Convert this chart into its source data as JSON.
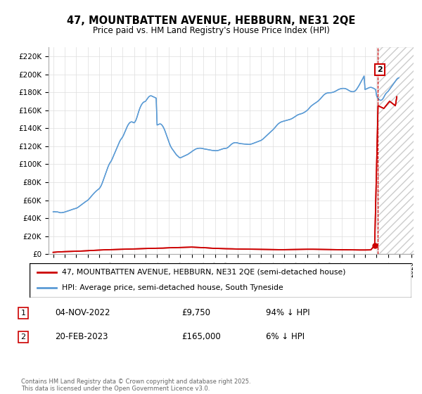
{
  "title": "47, MOUNTBATTEN AVENUE, HEBBURN, NE31 2QE",
  "subtitle": "Price paid vs. HM Land Registry's House Price Index (HPI)",
  "legend_label_red": "47, MOUNTBATTEN AVENUE, HEBBURN, NE31 2QE (semi-detached house)",
  "legend_label_blue": "HPI: Average price, semi-detached house, South Tyneside",
  "ylim": [
    0,
    230000
  ],
  "yticks": [
    0,
    20000,
    40000,
    60000,
    80000,
    100000,
    120000,
    140000,
    160000,
    180000,
    200000,
    220000
  ],
  "ytick_labels": [
    "£0",
    "£20K",
    "£40K",
    "£60K",
    "£80K",
    "£100K",
    "£120K",
    "£140K",
    "£160K",
    "£180K",
    "£200K",
    "£220K"
  ],
  "t1_year": 2022.833,
  "t1_price": 9750,
  "t2_year": 2023.125,
  "t2_price": 165000,
  "copyright": "Contains HM Land Registry data © Crown copyright and database right 2025.\nThis data is licensed under the Open Government Licence v3.0.",
  "red_color": "#cc0000",
  "blue_color": "#5b9bd5",
  "hpi_years": [
    1995.0,
    1995.083,
    1995.167,
    1995.25,
    1995.333,
    1995.417,
    1995.5,
    1995.583,
    1995.667,
    1995.75,
    1995.833,
    1995.917,
    1996.0,
    1996.083,
    1996.167,
    1996.25,
    1996.333,
    1996.417,
    1996.5,
    1996.583,
    1996.667,
    1996.75,
    1996.833,
    1996.917,
    1997.0,
    1997.083,
    1997.167,
    1997.25,
    1997.333,
    1997.417,
    1997.5,
    1997.583,
    1997.667,
    1997.75,
    1997.833,
    1997.917,
    1998.0,
    1998.083,
    1998.167,
    1998.25,
    1998.333,
    1998.417,
    1998.5,
    1998.583,
    1998.667,
    1998.75,
    1998.833,
    1998.917,
    1999.0,
    1999.083,
    1999.167,
    1999.25,
    1999.333,
    1999.417,
    1999.5,
    1999.583,
    1999.667,
    1999.75,
    1999.833,
    1999.917,
    2000.0,
    2000.083,
    2000.167,
    2000.25,
    2000.333,
    2000.417,
    2000.5,
    2000.583,
    2000.667,
    2000.75,
    2000.833,
    2000.917,
    2001.0,
    2001.083,
    2001.167,
    2001.25,
    2001.333,
    2001.417,
    2001.5,
    2001.583,
    2001.667,
    2001.75,
    2001.833,
    2001.917,
    2002.0,
    2002.083,
    2002.167,
    2002.25,
    2002.333,
    2002.417,
    2002.5,
    2002.583,
    2002.667,
    2002.75,
    2002.833,
    2002.917,
    2003.0,
    2003.083,
    2003.167,
    2003.25,
    2003.333,
    2003.417,
    2003.5,
    2003.583,
    2003.667,
    2003.75,
    2003.833,
    2003.917,
    2004.0,
    2004.083,
    2004.167,
    2004.25,
    2004.333,
    2004.417,
    2004.5,
    2004.583,
    2004.667,
    2004.75,
    2004.833,
    2004.917,
    2005.0,
    2005.083,
    2005.167,
    2005.25,
    2005.333,
    2005.417,
    2005.5,
    2005.583,
    2005.667,
    2005.75,
    2005.833,
    2005.917,
    2006.0,
    2006.083,
    2006.167,
    2006.25,
    2006.333,
    2006.417,
    2006.5,
    2006.583,
    2006.667,
    2006.75,
    2006.833,
    2006.917,
    2007.0,
    2007.083,
    2007.167,
    2007.25,
    2007.333,
    2007.417,
    2007.5,
    2007.583,
    2007.667,
    2007.75,
    2007.833,
    2007.917,
    2008.0,
    2008.083,
    2008.167,
    2008.25,
    2008.333,
    2008.417,
    2008.5,
    2008.583,
    2008.667,
    2008.75,
    2008.833,
    2008.917,
    2009.0,
    2009.083,
    2009.167,
    2009.25,
    2009.333,
    2009.417,
    2009.5,
    2009.583,
    2009.667,
    2009.75,
    2009.833,
    2009.917,
    2010.0,
    2010.083,
    2010.167,
    2010.25,
    2010.333,
    2010.417,
    2010.5,
    2010.583,
    2010.667,
    2010.75,
    2010.833,
    2010.917,
    2011.0,
    2011.083,
    2011.167,
    2011.25,
    2011.333,
    2011.417,
    2011.5,
    2011.583,
    2011.667,
    2011.75,
    2011.833,
    2011.917,
    2012.0,
    2012.083,
    2012.167,
    2012.25,
    2012.333,
    2012.417,
    2012.5,
    2012.583,
    2012.667,
    2012.75,
    2012.833,
    2012.917,
    2013.0,
    2013.083,
    2013.167,
    2013.25,
    2013.333,
    2013.417,
    2013.5,
    2013.583,
    2013.667,
    2013.75,
    2013.833,
    2013.917,
    2014.0,
    2014.083,
    2014.167,
    2014.25,
    2014.333,
    2014.417,
    2014.5,
    2014.583,
    2014.667,
    2014.75,
    2014.833,
    2014.917,
    2015.0,
    2015.083,
    2015.167,
    2015.25,
    2015.333,
    2015.417,
    2015.5,
    2015.583,
    2015.667,
    2015.75,
    2015.833,
    2015.917,
    2016.0,
    2016.083,
    2016.167,
    2016.25,
    2016.333,
    2016.417,
    2016.5,
    2016.583,
    2016.667,
    2016.75,
    2016.833,
    2016.917,
    2017.0,
    2017.083,
    2017.167,
    2017.25,
    2017.333,
    2017.417,
    2017.5,
    2017.583,
    2017.667,
    2017.75,
    2017.833,
    2017.917,
    2018.0,
    2018.083,
    2018.167,
    2018.25,
    2018.333,
    2018.417,
    2018.5,
    2018.583,
    2018.667,
    2018.75,
    2018.833,
    2018.917,
    2019.0,
    2019.083,
    2019.167,
    2019.25,
    2019.333,
    2019.417,
    2019.5,
    2019.583,
    2019.667,
    2019.75,
    2019.833,
    2019.917,
    2020.0,
    2020.083,
    2020.167,
    2020.25,
    2020.333,
    2020.417,
    2020.5,
    2020.583,
    2020.667,
    2020.75,
    2020.833,
    2020.917,
    2021.0,
    2021.083,
    2021.167,
    2021.25,
    2021.333,
    2021.417,
    2021.5,
    2021.583,
    2021.667,
    2021.75,
    2021.833,
    2021.917,
    2022.0,
    2022.083,
    2022.167,
    2022.25,
    2022.333,
    2022.417,
    2022.5,
    2022.583,
    2022.667,
    2022.75,
    2022.833,
    2022.917,
    2023.0,
    2023.083,
    2023.167,
    2023.25,
    2023.333,
    2023.417,
    2023.5,
    2023.583,
    2023.667,
    2023.75,
    2023.833,
    2023.917,
    2024.0,
    2024.083,
    2024.167,
    2024.25,
    2024.333,
    2024.417,
    2024.5,
    2024.583,
    2024.667,
    2024.75,
    2024.833,
    2024.917
  ],
  "hpi_values": [
    47000,
    47200,
    47100,
    46900,
    47000,
    46800,
    46500,
    46200,
    46000,
    46100,
    46300,
    46500,
    46800,
    47200,
    47500,
    47900,
    48200,
    48600,
    49000,
    49400,
    49800,
    50100,
    50400,
    50700,
    51000,
    51500,
    52200,
    53000,
    53800,
    54600,
    55400,
    56200,
    57000,
    57800,
    58500,
    59200,
    60000,
    61000,
    62200,
    63500,
    64800,
    66000,
    67200,
    68300,
    69400,
    70400,
    71300,
    72100,
    73000,
    74500,
    76500,
    79000,
    82000,
    85000,
    88000,
    91000,
    94000,
    97000,
    99500,
    101500,
    103000,
    105000,
    107500,
    110000,
    112500,
    115000,
    117500,
    120000,
    122500,
    125000,
    127000,
    128500,
    130000,
    132000,
    134500,
    137000,
    139500,
    142000,
    144000,
    145500,
    146500,
    147000,
    147000,
    146500,
    146000,
    147000,
    149000,
    152000,
    155500,
    159000,
    162000,
    164500,
    166500,
    168000,
    169000,
    169500,
    170000,
    171500,
    173000,
    174500,
    175500,
    176000,
    176000,
    175500,
    175000,
    174500,
    174000,
    173500,
    143500,
    144000,
    144500,
    144800,
    144500,
    143500,
    142000,
    140000,
    137500,
    134500,
    131500,
    128500,
    125500,
    122500,
    120000,
    118000,
    116500,
    115000,
    113500,
    112000,
    110500,
    109500,
    108500,
    107500,
    107000,
    107500,
    108000,
    108500,
    109000,
    109500,
    110000,
    110500,
    111000,
    111800,
    112500,
    113200,
    114000,
    114800,
    115500,
    116200,
    116800,
    117200,
    117500,
    117700,
    117800,
    117800,
    117700,
    117500,
    117200,
    117000,
    116800,
    116600,
    116400,
    116200,
    116000,
    115800,
    115600,
    115400,
    115300,
    115200,
    115100,
    115000,
    115100,
    115200,
    115500,
    115900,
    116300,
    116700,
    117000,
    117300,
    117500,
    117600,
    117800,
    118200,
    119000,
    120000,
    121000,
    122000,
    122800,
    123400,
    123800,
    124000,
    124000,
    123800,
    123500,
    123200,
    123000,
    122800,
    122700,
    122600,
    122500,
    122400,
    122300,
    122200,
    122100,
    122000,
    122000,
    122200,
    122500,
    122800,
    123200,
    123600,
    124000,
    124400,
    124800,
    125200,
    125600,
    126000,
    126500,
    127200,
    128000,
    129000,
    130000,
    131000,
    132000,
    133000,
    134000,
    135000,
    136000,
    137000,
    138000,
    139000,
    140200,
    141500,
    142800,
    144000,
    145000,
    145800,
    146500,
    147000,
    147400,
    147700,
    148000,
    148300,
    148600,
    148900,
    149200,
    149500,
    149800,
    150200,
    150700,
    151300,
    152000,
    152800,
    153500,
    154200,
    154800,
    155200,
    155600,
    155900,
    156200,
    156600,
    157100,
    157700,
    158400,
    159100,
    160000,
    161000,
    162300,
    163500,
    164600,
    165500,
    166300,
    167000,
    167700,
    168400,
    169200,
    170000,
    171000,
    172000,
    173200,
    174500,
    175700,
    176800,
    177700,
    178400,
    178900,
    179200,
    179400,
    179500,
    179500,
    179600,
    179800,
    180100,
    180500,
    181000,
    181600,
    182200,
    182800,
    183300,
    183700,
    184000,
    184200,
    184300,
    184300,
    184200,
    183900,
    183400,
    182800,
    182100,
    181500,
    181000,
    180700,
    180600,
    180600,
    181000,
    181800,
    183000,
    184500,
    186200,
    188000,
    190000,
    192000,
    194000,
    196000,
    198000,
    183000,
    183500,
    184000,
    184500,
    185000,
    185300,
    185400,
    185200,
    184800,
    184300,
    183700,
    183000,
    176000,
    174000,
    172500,
    171500,
    171000,
    171200,
    172000,
    173500,
    175500,
    177500,
    179000,
    180000,
    181000,
    182500,
    184000,
    185500,
    187000,
    188500,
    190000,
    191500,
    193000,
    194500,
    195500,
    196000
  ],
  "red_years": [
    1995.0,
    1995.5,
    1996.0,
    1996.5,
    1997.0,
    1997.5,
    1998.0,
    1998.5,
    1999.0,
    1999.5,
    2000.0,
    2000.5,
    2001.0,
    2001.5,
    2002.0,
    2002.5,
    2003.0,
    2003.5,
    2004.0,
    2004.5,
    2005.0,
    2005.5,
    2006.0,
    2006.5,
    2007.0,
    2007.5,
    2008.0,
    2008.5,
    2009.0,
    2009.5,
    2010.0,
    2010.5,
    2011.0,
    2011.5,
    2012.0,
    2012.5,
    2013.0,
    2013.5,
    2014.0,
    2014.5,
    2015.0,
    2015.5,
    2016.0,
    2016.5,
    2017.0,
    2017.5,
    2018.0,
    2018.5,
    2019.0,
    2019.5,
    2020.0,
    2020.5,
    2021.0,
    2021.5,
    2022.0,
    2022.5,
    2022.833
  ],
  "red_values": [
    2000,
    2500,
    2800,
    3000,
    3200,
    3500,
    3800,
    4200,
    4500,
    4800,
    5000,
    5200,
    5400,
    5600,
    5800,
    6000,
    6200,
    6400,
    6600,
    6700,
    7000,
    7200,
    7400,
    7600,
    7800,
    7500,
    7200,
    6800,
    6400,
    6200,
    6000,
    5900,
    5700,
    5600,
    5500,
    5400,
    5300,
    5200,
    5100,
    5000,
    5000,
    5100,
    5200,
    5300,
    5400,
    5400,
    5300,
    5200,
    5100,
    5000,
    4900,
    4800,
    4700,
    4600,
    4600,
    4700,
    9750
  ]
}
